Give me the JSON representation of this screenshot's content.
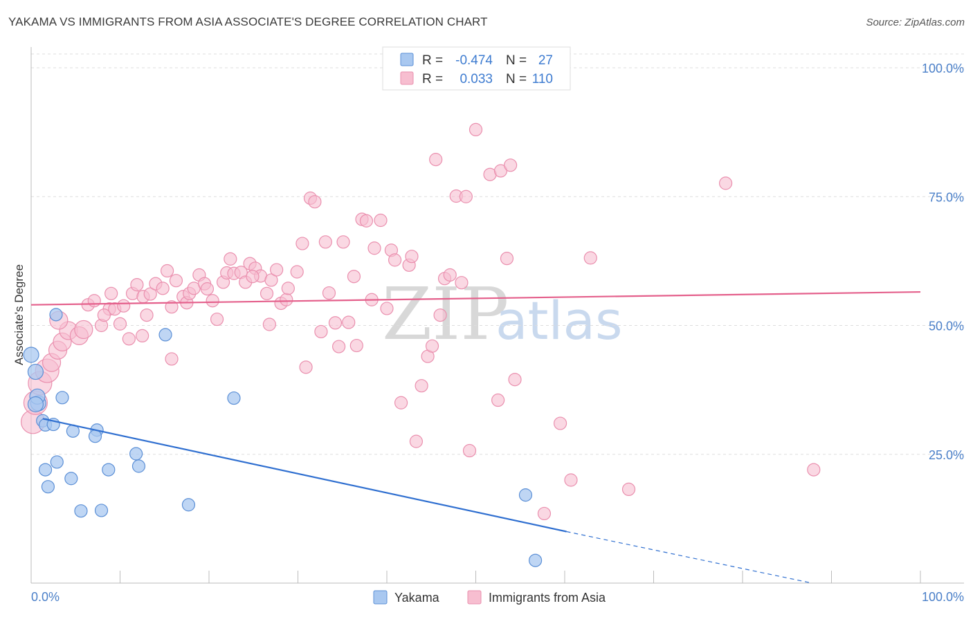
{
  "title": "YAKAMA VS IMMIGRANTS FROM ASIA ASSOCIATE'S DEGREE CORRELATION CHART",
  "source": "Source: ZipAtlas.com",
  "watermark": {
    "zip": "ZIP",
    "atlas": "atlas"
  },
  "stats_box": {
    "rows": [
      {
        "r_label": "R =",
        "r_value": "-0.474",
        "n_label": "N =",
        "n_value": "27"
      },
      {
        "r_label": "R =",
        "r_value": "0.033",
        "n_label": "N =",
        "n_value": "110"
      }
    ]
  },
  "chart_data": {
    "type": "scatter",
    "title": "YAKAMA VS IMMIGRANTS FROM ASIA ASSOCIATE'S DEGREE CORRELATION CHART",
    "xlabel": "",
    "ylabel": "Associate's Degree",
    "xlim": [
      0,
      100
    ],
    "ylim": [
      0,
      100
    ],
    "x_tick_labels": [
      "0.0%",
      "100.0%"
    ],
    "y_ticks": [
      25,
      50,
      75,
      100
    ],
    "y_tick_labels": [
      "25.0%",
      "50.0%",
      "75.0%",
      "100.0%"
    ],
    "grid": true,
    "legend_position": "bottom",
    "colors": {
      "yakama_fill": "#a9c8f0",
      "yakama_stroke": "#5b8fd6",
      "yakama_line": "#2f6fd0",
      "asia_fill": "#f7bed0",
      "asia_stroke": "#ea8fae",
      "asia_line": "#e45f8b",
      "grid": "#dddddd",
      "axis": "#bbbbbb",
      "tick_label": "#4a7fc8"
    },
    "series": [
      {
        "name": "Yakama",
        "r": -0.474,
        "n": 27,
        "trend": {
          "x0": 1.3,
          "y0": 31.9,
          "x1": 60.2,
          "y1": 10.0,
          "dash_to_x": 87.8,
          "dash_to_y": -0.2
        },
        "points": [
          [
            0.0,
            44.3
          ],
          [
            0.5,
            41.0
          ],
          [
            2.8,
            52.1
          ],
          [
            0.8,
            34.9
          ],
          [
            1.3,
            31.5
          ],
          [
            1.6,
            30.7
          ],
          [
            2.5,
            30.8
          ],
          [
            3.5,
            36.0
          ],
          [
            4.7,
            29.5
          ],
          [
            7.4,
            29.7
          ],
          [
            7.2,
            28.5
          ],
          [
            22.8,
            35.9
          ],
          [
            15.1,
            48.2
          ],
          [
            1.6,
            22.0
          ],
          [
            2.9,
            23.5
          ],
          [
            1.9,
            18.7
          ],
          [
            4.5,
            20.3
          ],
          [
            8.7,
            22.0
          ],
          [
            11.8,
            25.1
          ],
          [
            12.1,
            22.7
          ],
          [
            5.6,
            14.0
          ],
          [
            7.9,
            14.1
          ],
          [
            17.7,
            15.2
          ],
          [
            55.6,
            17.1
          ],
          [
            56.7,
            4.4
          ],
          [
            0.7,
            36.2
          ],
          [
            0.5,
            34.7
          ]
        ]
      },
      {
        "name": "Immigrants from Asia",
        "r": 0.033,
        "n": 110,
        "trend": {
          "x0": 0.0,
          "y0": 54.0,
          "x1": 100.0,
          "y1": 56.5
        },
        "points": [
          [
            0.2,
            31.3
          ],
          [
            0.5,
            35.0
          ],
          [
            1.0,
            38.8
          ],
          [
            1.8,
            41.2
          ],
          [
            2.3,
            42.8
          ],
          [
            3.0,
            45.2
          ],
          [
            3.5,
            46.8
          ],
          [
            4.2,
            49.0
          ],
          [
            5.4,
            48.0
          ],
          [
            5.9,
            49.2
          ],
          [
            6.4,
            54.0
          ],
          [
            7.1,
            54.8
          ],
          [
            7.9,
            50.0
          ],
          [
            8.8,
            53.2
          ],
          [
            9.4,
            53.2
          ],
          [
            10.4,
            53.8
          ],
          [
            10.0,
            50.3
          ],
          [
            11.0,
            47.4
          ],
          [
            11.4,
            56.2
          ],
          [
            11.9,
            57.9
          ],
          [
            12.6,
            55.6
          ],
          [
            13.0,
            52.0
          ],
          [
            13.4,
            56.1
          ],
          [
            14.0,
            58.1
          ],
          [
            14.8,
            57.2
          ],
          [
            15.3,
            60.6
          ],
          [
            15.8,
            53.6
          ],
          [
            16.3,
            58.7
          ],
          [
            17.1,
            55.6
          ],
          [
            17.5,
            54.4
          ],
          [
            17.8,
            56.2
          ],
          [
            18.3,
            57.2
          ],
          [
            18.9,
            59.8
          ],
          [
            19.5,
            58.1
          ],
          [
            19.8,
            57.1
          ],
          [
            20.4,
            54.8
          ],
          [
            20.9,
            51.2
          ],
          [
            21.6,
            58.4
          ],
          [
            22.0,
            60.2
          ],
          [
            22.4,
            62.9
          ],
          [
            22.8,
            60.1
          ],
          [
            23.6,
            60.3
          ],
          [
            24.1,
            58.4
          ],
          [
            24.6,
            62.0
          ],
          [
            25.2,
            61.1
          ],
          [
            25.8,
            59.6
          ],
          [
            26.5,
            56.2
          ],
          [
            27.0,
            58.8
          ],
          [
            27.6,
            60.8
          ],
          [
            28.1,
            54.3
          ],
          [
            28.7,
            55.0
          ],
          [
            28.9,
            57.2
          ],
          [
            29.9,
            60.4
          ],
          [
            30.5,
            65.9
          ],
          [
            31.4,
            74.7
          ],
          [
            31.9,
            74.0
          ],
          [
            32.6,
            48.8
          ],
          [
            33.1,
            66.2
          ],
          [
            33.5,
            56.3
          ],
          [
            34.2,
            50.5
          ],
          [
            34.6,
            45.9
          ],
          [
            35.1,
            66.2
          ],
          [
            35.7,
            50.6
          ],
          [
            36.3,
            59.5
          ],
          [
            36.6,
            46.1
          ],
          [
            37.2,
            70.6
          ],
          [
            37.7,
            70.3
          ],
          [
            38.3,
            55.0
          ],
          [
            38.6,
            65.0
          ],
          [
            39.3,
            70.4
          ],
          [
            40.0,
            53.3
          ],
          [
            40.5,
            64.6
          ],
          [
            40.9,
            62.7
          ],
          [
            41.6,
            35.0
          ],
          [
            42.5,
            61.7
          ],
          [
            42.8,
            63.4
          ],
          [
            43.3,
            27.5
          ],
          [
            43.9,
            38.3
          ],
          [
            44.6,
            44.0
          ],
          [
            45.1,
            46.0
          ],
          [
            45.5,
            82.2
          ],
          [
            46.5,
            59.1
          ],
          [
            47.1,
            59.8
          ],
          [
            47.8,
            75.1
          ],
          [
            48.4,
            58.3
          ],
          [
            48.9,
            75.0
          ],
          [
            49.3,
            25.7
          ],
          [
            50.0,
            88.0
          ],
          [
            51.6,
            79.3
          ],
          [
            52.5,
            35.5
          ],
          [
            52.8,
            80.0
          ],
          [
            53.5,
            63.0
          ],
          [
            53.9,
            81.1
          ],
          [
            54.4,
            39.5
          ],
          [
            57.7,
            13.5
          ],
          [
            59.5,
            31.0
          ],
          [
            60.7,
            20.0
          ],
          [
            62.9,
            63.1
          ],
          [
            67.2,
            18.2
          ],
          [
            78.1,
            77.6
          ],
          [
            88.0,
            22.0
          ],
          [
            15.8,
            43.5
          ],
          [
            12.5,
            48.0
          ],
          [
            26.8,
            50.2
          ],
          [
            24.9,
            59.5
          ],
          [
            9.0,
            56.2
          ],
          [
            8.2,
            52.0
          ],
          [
            3.1,
            51.0
          ],
          [
            30.9,
            41.9
          ],
          [
            46.0,
            52.0
          ]
        ]
      }
    ]
  },
  "legend": {
    "items": [
      {
        "label": "Yakama"
      },
      {
        "label": "Immigrants from Asia"
      }
    ]
  }
}
